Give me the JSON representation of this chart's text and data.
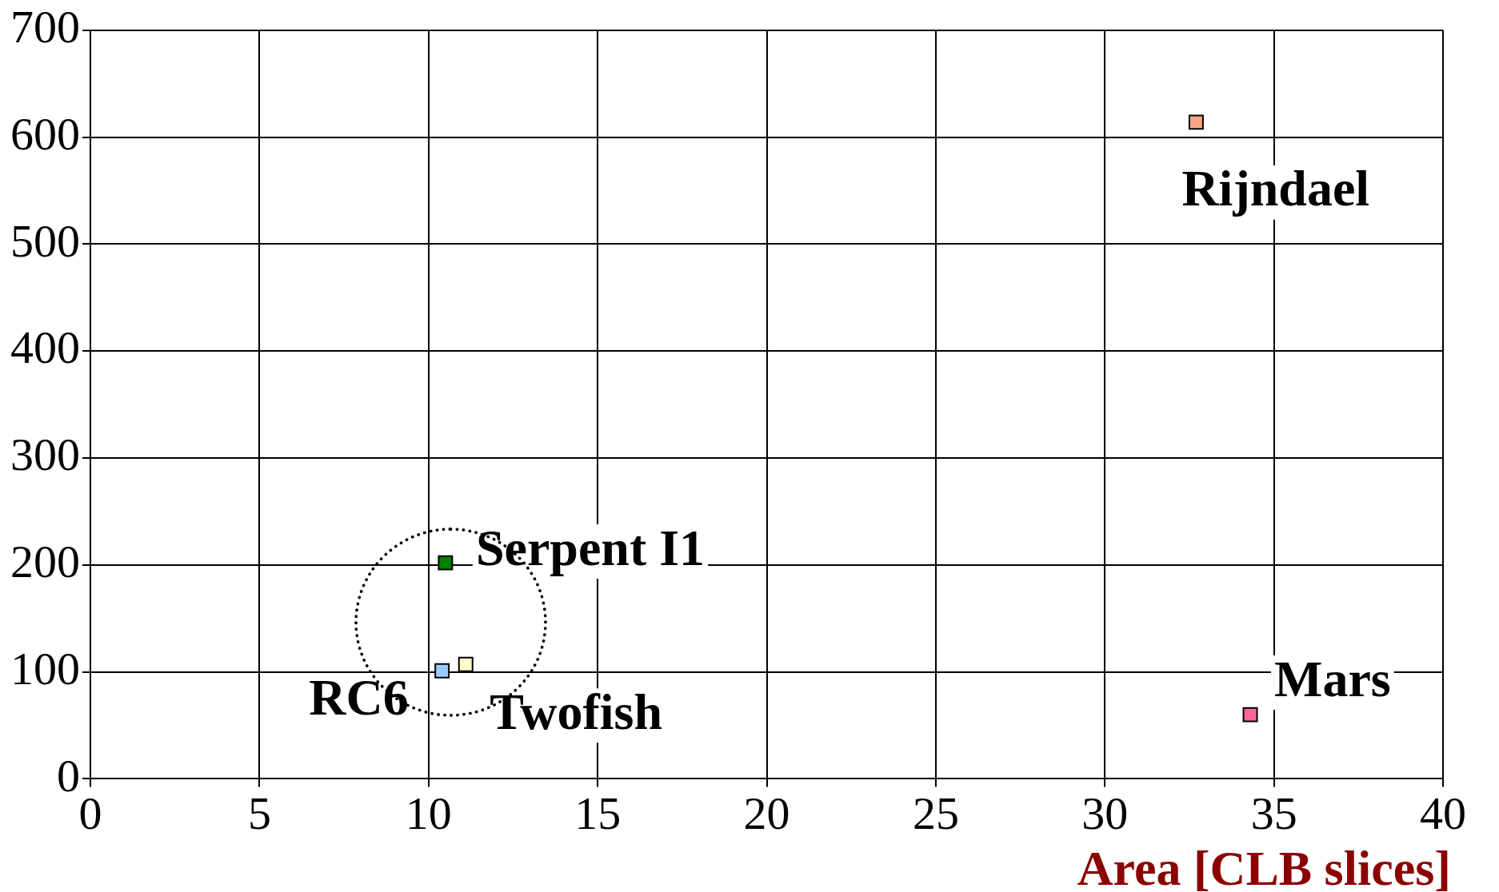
{
  "chart_data": {
    "type": "scatter",
    "xlabel": "Area [CLB slices]",
    "xlim": [
      0,
      40
    ],
    "xticks": [
      0,
      5,
      10,
      15,
      20,
      25,
      30,
      35,
      40
    ],
    "ylim": [
      0,
      700
    ],
    "yticks": [
      0,
      100,
      200,
      300,
      400,
      500,
      600,
      700
    ],
    "grid": true,
    "legend": false,
    "marker": "square",
    "series": [
      {
        "name": "Rijndael",
        "color": "#f7a583",
        "x": [
          32.7
        ],
        "values": [
          614
        ]
      },
      {
        "name": "Serpent I1",
        "color": "#008000",
        "x": [
          10.5
        ],
        "values": [
          202
        ]
      },
      {
        "name": "RC6",
        "color": "#99ccff",
        "x": [
          10.4
        ],
        "values": [
          101
        ]
      },
      {
        "name": "Twofish",
        "color": "#ffffcc",
        "x": [
          11.1
        ],
        "values": [
          107
        ]
      },
      {
        "name": "Mars",
        "color": "#ff6699",
        "x": [
          34.3
        ],
        "values": [
          60
        ]
      }
    ]
  }
}
